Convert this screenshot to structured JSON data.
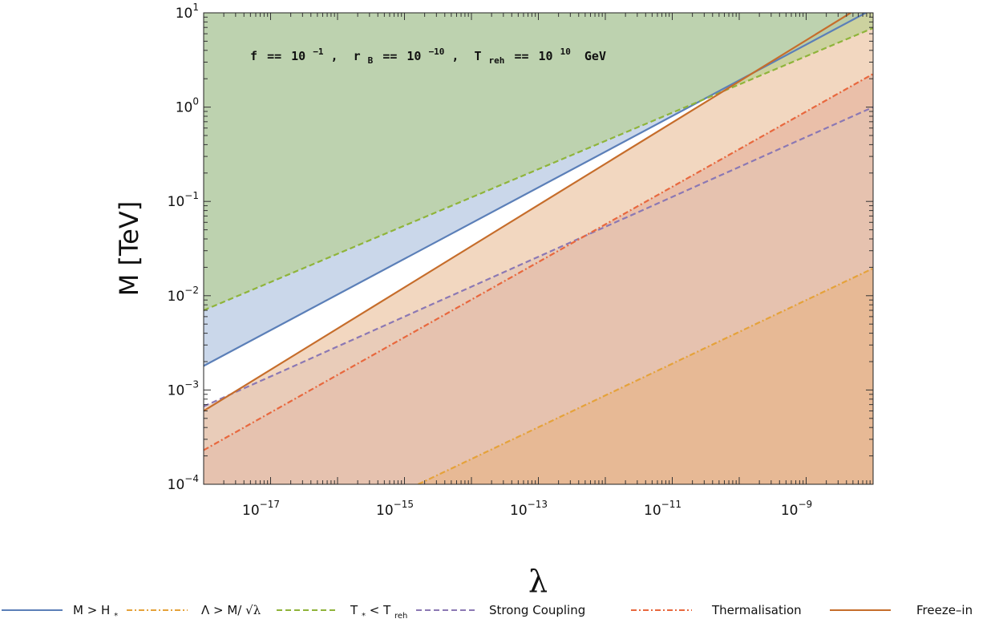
{
  "chart_data": {
    "type": "area",
    "annotation": "f == 10^-1, r_B == 10^-10, T_reh == 10^10 GeV",
    "annotation_parts": {
      "f_label": "f",
      "f_base": "10",
      "f_exp": "−1",
      "r_label": "r",
      "r_sub": "B",
      "r_base": "10",
      "r_exp": "−10",
      "t_label": "T",
      "t_sub": "reh",
      "t_base": "10",
      "t_exp": "10",
      "unit": "GeV",
      "eq": "==",
      "sep": ","
    },
    "xlabel": "λ",
    "ylabel": "M [TeV]",
    "x_scale": "log",
    "y_scale": "log",
    "xlim": [
      1e-18,
      1e-08
    ],
    "ylim": [
      0.0001,
      10
    ],
    "x_ticks": [
      {
        "value": 1e-17,
        "base": "10",
        "exp": "−17"
      },
      {
        "value": 1e-15,
        "base": "10",
        "exp": "−15"
      },
      {
        "value": 1e-13,
        "base": "10",
        "exp": "−13"
      },
      {
        "value": 1e-11,
        "base": "10",
        "exp": "−11"
      },
      {
        "value": 1e-09,
        "base": "10",
        "exp": "−9"
      }
    ],
    "y_ticks": [
      {
        "value": 0.0001,
        "base": "10",
        "exp": "−4"
      },
      {
        "value": 0.001,
        "base": "10",
        "exp": "−3"
      },
      {
        "value": 0.01,
        "base": "10",
        "exp": "−2"
      },
      {
        "value": 0.1,
        "base": "10",
        "exp": "−1"
      },
      {
        "value": 1,
        "base": "10",
        "exp": "0"
      },
      {
        "value": 10,
        "base": "10",
        "exp": "1"
      }
    ],
    "series": [
      {
        "key": "H",
        "color": "#5b7fb8",
        "dash": "solid",
        "fill": "above",
        "fill_color": "#a7bcdc",
        "x": [
          1e-18,
          1e-08
        ],
        "y": [
          0.0018,
          11
        ]
      },
      {
        "key": "L",
        "color": "#e5a23a",
        "dash": "dashdot",
        "fill": "below",
        "fill_color": "#e7b58a",
        "x": [
          1.6e-15,
          1e-08
        ],
        "y": [
          0.0001,
          0.0195
        ]
      },
      {
        "key": "T",
        "color": "#8fb43a",
        "dash": "dashed",
        "fill": "above",
        "fill_color": "#b5cf8a",
        "x": [
          1e-18,
          1e-08
        ],
        "y": [
          0.007,
          6.9
        ]
      },
      {
        "key": "S",
        "color": "#8b78b4",
        "dash": "dashed",
        "fill": "below",
        "fill_color": "#e3c4b4",
        "x": [
          1e-18,
          1e-08
        ],
        "y": [
          0.00067,
          1.0
        ]
      },
      {
        "key": "TH",
        "color": "#e8683e",
        "dash": "dashdot",
        "fill": "below",
        "fill_color": "#e7b7a2",
        "x": [
          1e-18,
          1e-08
        ],
        "y": [
          0.00023,
          2.25
        ]
      },
      {
        "key": "F",
        "color": "#c66d2b",
        "dash": "solid",
        "fill": "below",
        "fill_color": "#f1d3b9",
        "x": [
          1e-18,
          1e-08
        ],
        "y": [
          0.0006,
          14
        ]
      }
    ],
    "legend": {
      "placement": "bottom",
      "entries": [
        {
          "key": "H",
          "parts": [
            "M > H",
            "*",
            ""
          ]
        },
        {
          "key": "L",
          "parts": [
            "Λ > M/",
            "√λ",
            ""
          ]
        },
        {
          "key": "T",
          "parts": [
            "T",
            "*",
            " < T",
            "reh"
          ]
        },
        {
          "key": "S",
          "parts": [
            "Strong Coupling"
          ]
        },
        {
          "key": "TH",
          "parts": [
            "Thermalisation"
          ]
        },
        {
          "key": "F",
          "parts": [
            "Freeze–in"
          ]
        }
      ]
    }
  }
}
